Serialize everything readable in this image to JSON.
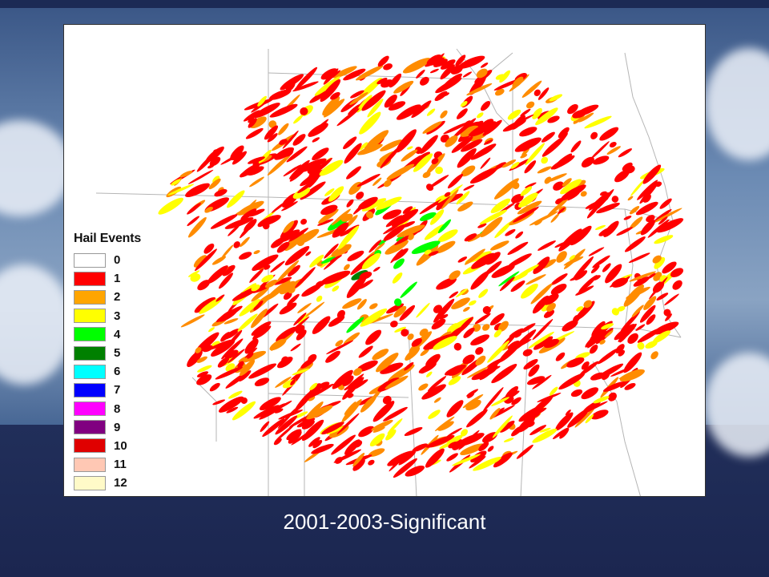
{
  "legend": {
    "title": "Hail Events",
    "items": [
      {
        "label": "0",
        "color": "#ffffff"
      },
      {
        "label": "1",
        "color": "#ff0000"
      },
      {
        "label": "2",
        "color": "#ffa500"
      },
      {
        "label": "3",
        "color": "#ffff00"
      },
      {
        "label": "4",
        "color": "#00ff00"
      },
      {
        "label": "5",
        "color": "#008000"
      },
      {
        "label": "6",
        "color": "#00ffff"
      },
      {
        "label": "7",
        "color": "#0000ff"
      },
      {
        "label": "8",
        "color": "#ff00ff"
      },
      {
        "label": "9",
        "color": "#800080"
      },
      {
        "label": "10",
        "color": "#e00000"
      },
      {
        "label": "11",
        "color": "#ffc8b4"
      },
      {
        "label": "12",
        "color": "#fffac8"
      }
    ]
  },
  "caption": "2001-2003-Significant"
}
